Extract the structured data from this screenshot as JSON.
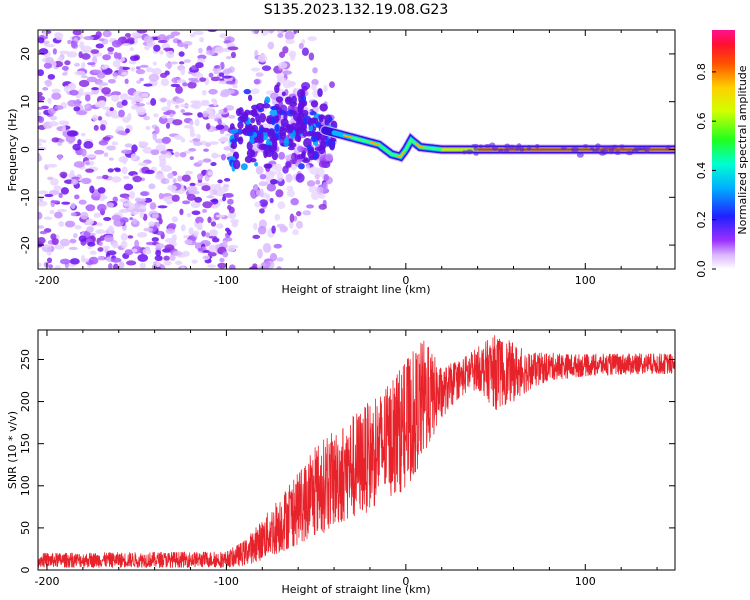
{
  "chart_data": [
    {
      "type": "heatmap",
      "title": "S135.2023.132.19.08.G23",
      "xlabel": "Height of straight line (km)",
      "ylabel": "Frequency (Hz)",
      "xlim": [
        -205,
        150
      ],
      "ylim": [
        -25,
        25
      ],
      "xticks": [
        -200,
        -100,
        0,
        100
      ],
      "xtick_labels": [
        "-200",
        "-100",
        "0",
        "100"
      ],
      "yticks": [
        -20,
        -10,
        0,
        10,
        20
      ],
      "ytick_labels": [
        "-20",
        "-10",
        "0",
        "10",
        "20"
      ],
      "colorbar": {
        "label": "Normalized spectral amplitude",
        "range": [
          0.0,
          0.97
        ],
        "ticks": [
          0.0,
          0.2,
          0.4,
          0.6,
          0.8
        ],
        "tick_labels": [
          "0.0",
          "0.2",
          "0.4",
          "0.6",
          "0.8"
        ],
        "colormap": "rainbow (purple-blue-cyan-green-yellow-orange-red-magenta)"
      },
      "features": {
        "noise_region_x": [
          -205,
          -95
        ],
        "gap_x": [
          -95,
          -85
        ],
        "scattered_region_x": [
          -85,
          -40
        ],
        "ridge_frequency_hz": [
          [
            -95,
            4
          ],
          [
            -80,
            4
          ],
          [
            -60,
            5
          ],
          [
            -45,
            4
          ],
          [
            -35,
            3
          ],
          [
            -25,
            2
          ],
          [
            -15,
            1
          ],
          [
            -8,
            -1
          ],
          [
            -3,
            -1.5
          ],
          [
            0,
            0
          ],
          [
            3,
            2
          ],
          [
            8,
            0.5
          ],
          [
            20,
            0
          ],
          [
            150,
            0
          ]
        ],
        "strong_ridge_x": [
          30,
          150
        ]
      }
    },
    {
      "type": "line",
      "title": "",
      "xlabel": "Height of straight line (km)",
      "ylabel": "SNR (10 * v/v)",
      "xlim": [
        -205,
        150
      ],
      "ylim": [
        0,
        285
      ],
      "xticks": [
        -200,
        -100,
        0,
        100
      ],
      "xtick_labels": [
        "-200",
        "-100",
        "0",
        "100"
      ],
      "yticks": [
        0,
        50,
        100,
        150,
        200,
        250
      ],
      "ytick_labels": [
        "0",
        "50",
        "100",
        "150",
        "200",
        "250"
      ],
      "series": [
        {
          "name": "SNR",
          "color": "#e8222a",
          "envelope_x": [
            -205,
            -100,
            -90,
            -80,
            -70,
            -60,
            -50,
            -40,
            -30,
            -20,
            -10,
            0,
            10,
            20,
            30,
            40,
            50,
            60,
            70,
            80,
            100,
            120,
            150
          ],
          "envelope_low": [
            3,
            3,
            5,
            12,
            20,
            30,
            40,
            50,
            60,
            70,
            85,
            95,
            130,
            180,
            205,
            215,
            190,
            200,
            215,
            225,
            230,
            232,
            233
          ],
          "envelope_high": [
            20,
            22,
            35,
            60,
            90,
            115,
            150,
            165,
            185,
            200,
            220,
            250,
            275,
            240,
            250,
            265,
            280,
            270,
            258,
            258,
            256,
            257,
            257
          ]
        }
      ]
    }
  ],
  "colors": {
    "noise_purple": "#8a2be2",
    "line_red": "#e8222a"
  }
}
